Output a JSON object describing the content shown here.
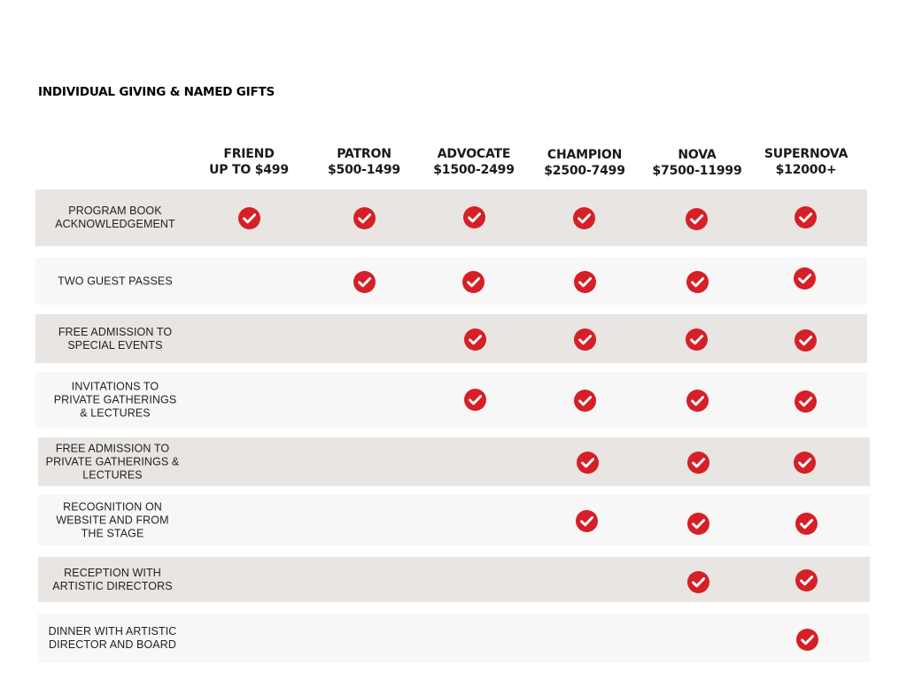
{
  "title": "INDIVIDUAL GIVING & NAMED GIFTS",
  "colors": {
    "check": "#d61f26",
    "row_shaded": "#e8e5e2",
    "row_light": "#f7f7f7"
  },
  "tiers": [
    {
      "name": "FRIEND",
      "range": "UP TO $499"
    },
    {
      "name": "PATRON",
      "range": "$500-1499"
    },
    {
      "name": "ADVOCATE",
      "range": "$1500-2499"
    },
    {
      "name": "CHAMPION",
      "range": "$2500-7499"
    },
    {
      "name": "NOVA",
      "range": "$7500-11999"
    },
    {
      "name": "SUPERNOVA",
      "range": "$12000+"
    }
  ],
  "benefits": [
    {
      "label": [
        "PROGRAM BOOK",
        "ACKNOWLEDGEMENT"
      ],
      "included": [
        true,
        true,
        true,
        true,
        true,
        true
      ]
    },
    {
      "label": [
        "TWO GUEST PASSES"
      ],
      "included": [
        false,
        true,
        true,
        true,
        true,
        true
      ]
    },
    {
      "label": [
        "FREE ADMISSION TO",
        "SPECIAL EVENTS"
      ],
      "included": [
        false,
        false,
        true,
        true,
        true,
        true
      ]
    },
    {
      "label": [
        "INVITATIONS TO",
        "PRIVATE GATHERINGS",
        "& LECTURES"
      ],
      "included": [
        false,
        false,
        true,
        true,
        true,
        true
      ]
    },
    {
      "label": [
        "FREE ADMISSION TO",
        "PRIVATE GATHERINGS &",
        "LECTURES"
      ],
      "included": [
        false,
        false,
        false,
        true,
        true,
        true
      ]
    },
    {
      "label": [
        "RECOGNITION ON",
        "WEBSITE AND FROM",
        "THE STAGE"
      ],
      "included": [
        false,
        false,
        false,
        true,
        true,
        true
      ]
    },
    {
      "label": [
        "RECEPTION WITH",
        "ARTISTIC DIRECTORS"
      ],
      "included": [
        false,
        false,
        false,
        false,
        true,
        true
      ]
    },
    {
      "label": [
        "DINNER WITH ARTISTIC",
        "DIRECTOR AND BOARD"
      ],
      "included": [
        false,
        false,
        false,
        false,
        false,
        true
      ]
    }
  ]
}
